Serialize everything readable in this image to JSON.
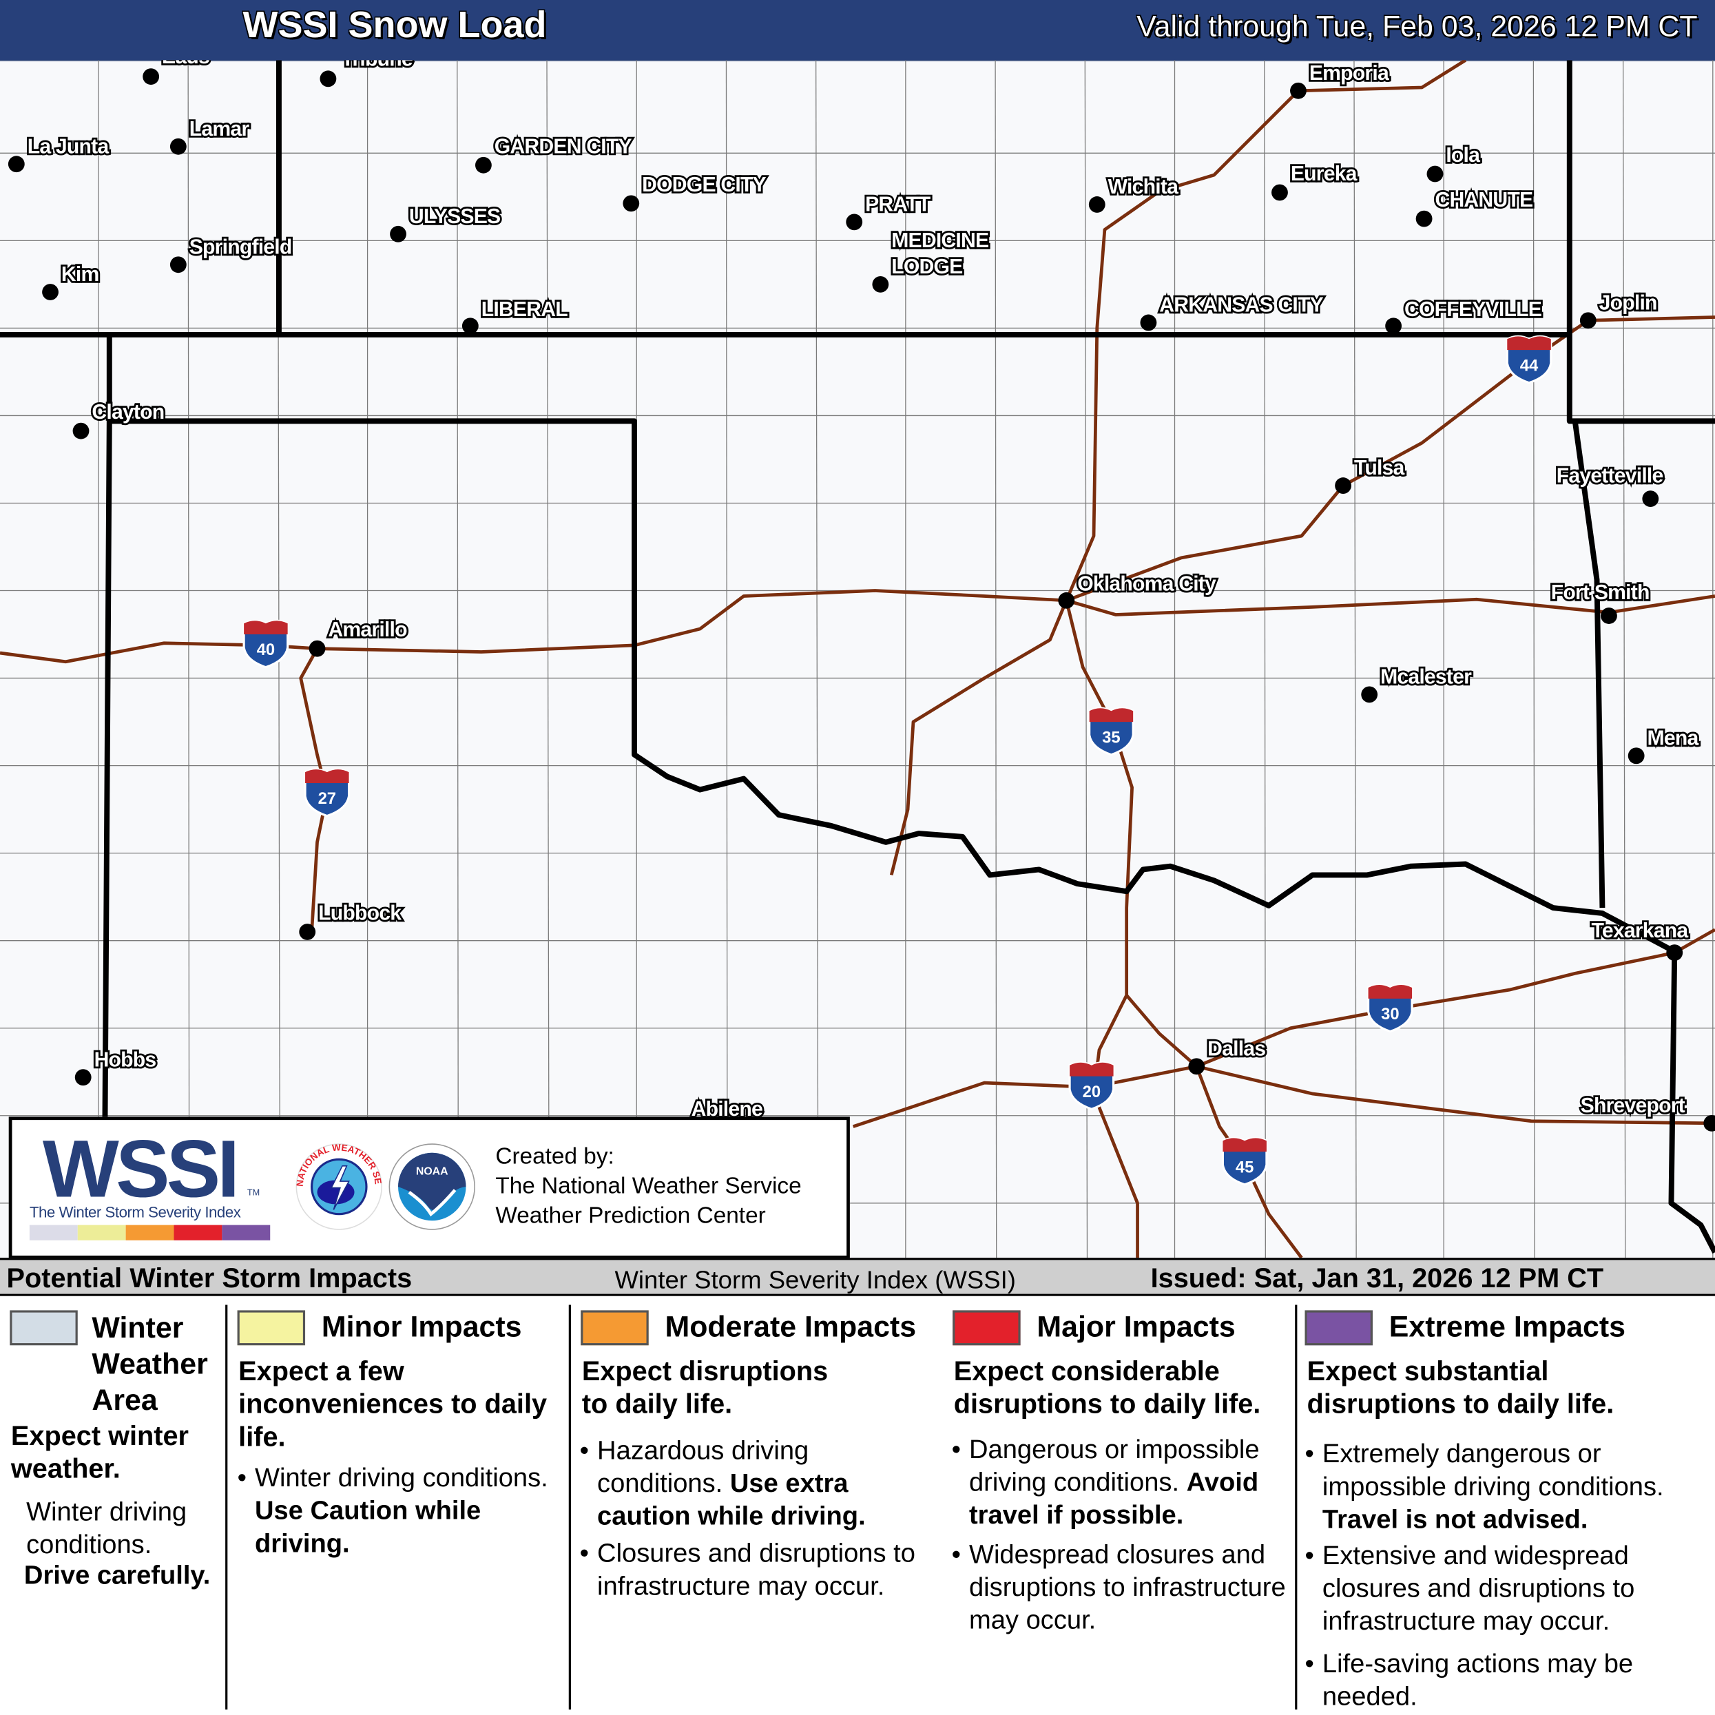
{
  "header": {
    "title": "WSSI Snow Load",
    "valid": "Valid through Tue, Feb 03, 2026 12 PM CT"
  },
  "colors": {
    "header_bg": "#27407a",
    "road": "#7a2e0e",
    "winter_weather_area": "#d3dde6",
    "minor": "#f5f3a0",
    "moderate": "#f59a33",
    "major": "#e3212b",
    "extreme": "#7a53a3"
  },
  "map": {
    "cities": [
      "Eads",
      "Tribune",
      "La Junta",
      "Lamar",
      "GARDEN CITY",
      "DODGE CITY",
      "ULYSSES",
      "Springfield",
      "Kim",
      "LIBERAL",
      "PRATT",
      "MEDICINE",
      "LODGE",
      "Wichita",
      "Emporia",
      "Eureka",
      "Iola",
      "CHANUTE",
      "ARKANSAS CITY",
      "COFFEYVILLE",
      "Joplin",
      "Clayton",
      "Tulsa",
      "Fayetteville",
      "Oklahoma City",
      "Fort Smith",
      "Amarillo",
      "Mcalester",
      "Mena",
      "Lubbock",
      "Texarkana",
      "Hobbs",
      "Dallas",
      "Abilene",
      "Shreveport"
    ],
    "interstates": [
      "44",
      "40",
      "35",
      "27",
      "30",
      "20",
      "45"
    ]
  },
  "logo": {
    "wssi": "WSSI",
    "tm": "TM",
    "subtitle": "The Winter Storm Severity Index",
    "nws_seal": "NATIONAL WEATHER SERVICE",
    "noaa_seal": "NOAA",
    "created_by": "Created by:",
    "org1": "The National Weather Service",
    "org2": "Weather Prediction Center"
  },
  "legend": {
    "title": "Potential Winter Storm Impacts",
    "index_name": "Winter Storm Severity Index (WSSI)",
    "issued": "Issued: Sat, Jan 31, 2026 12 PM CT",
    "winter": {
      "name": "Winter Weather Area",
      "summary": "Expect winter weather.",
      "text": "Winter driving conditions.",
      "bold": "Drive carefully."
    },
    "minor": {
      "name": "Minor Impacts",
      "summary": "Expect a few inconveniences to daily life.",
      "b1_text": "Winter driving conditions.",
      "b1_bold": "Use Caution while driving."
    },
    "moderate": {
      "name": "Moderate Impacts",
      "summary": "Expect disruptions to daily life.",
      "b1_text": "Hazardous driving conditions.",
      "b1_bold": "Use extra caution while driving.",
      "b2_text": "Closures and disruptions to infrastructure may occur."
    },
    "major": {
      "name": "Major Impacts",
      "summary": "Expect considerable disruptions to daily life.",
      "b1_text": "Dangerous or impossible driving conditions.",
      "b1_bold": "Avoid travel if possible.",
      "b2_text": "Widespread closures and disruptions to infrastructure may occur."
    },
    "extreme": {
      "name": "Extreme Impacts",
      "summary": "Expect substantial disruptions to daily life.",
      "b1_text": "Extremely dangerous or impossible driving conditions.",
      "b1_bold": "Travel is not advised.",
      "b2_text": "Extensive and widespread closures and disruptions to infrastructure may occur.",
      "b3_text": "Life-saving actions may be needed."
    }
  }
}
